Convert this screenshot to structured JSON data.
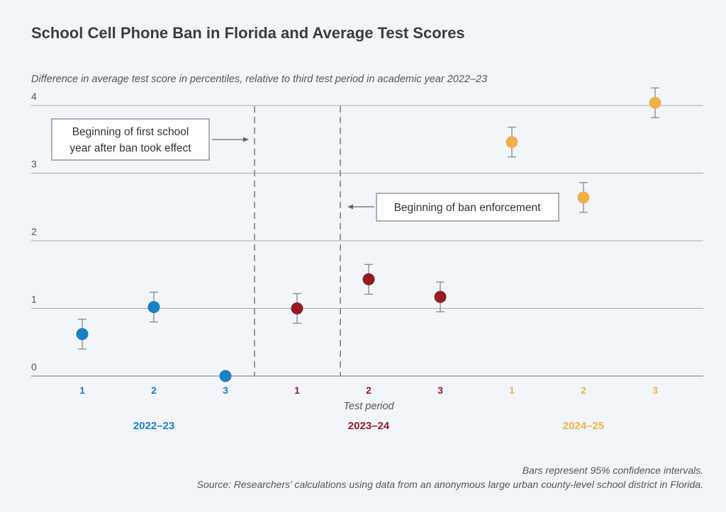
{
  "title": "School Cell Phone Ban in Florida and Average Test Scores",
  "subtitle": "Difference in average test score in percentiles, relative to third test period in academic year 2022–23",
  "notes": {
    "bars": "Bars represent 95% confidence intervals.",
    "source": "Source: Researchers’ calculations using data from an anonymous large urban county-level school district in Florida."
  },
  "colors": {
    "2022-23": "#1a7fc4",
    "2023-24": "#961c24",
    "2024-25": "#f0b04a"
  },
  "chart_data": {
    "type": "scatter",
    "xlabel": "Test period",
    "ylim": [
      0,
      4
    ],
    "yticks": [
      "0",
      "1",
      "2",
      "3",
      "4"
    ],
    "grid": true,
    "x_categories": [
      "1",
      "2",
      "3",
      "1",
      "2",
      "3",
      "1",
      "2",
      "3"
    ],
    "groups": [
      {
        "label": "2022–23",
        "color": "#1a7fc4",
        "points": [
          {
            "period": "1",
            "y": 0.62,
            "ci": [
              0.4,
              0.84
            ]
          },
          {
            "period": "2",
            "y": 1.02,
            "ci": [
              0.8,
              1.24
            ]
          },
          {
            "period": "3",
            "y": 0.0,
            "ci": null
          }
        ]
      },
      {
        "label": "2023–24",
        "color": "#961c24",
        "points": [
          {
            "period": "1",
            "y": 1.0,
            "ci": [
              0.78,
              1.22
            ]
          },
          {
            "period": "2",
            "y": 1.43,
            "ci": [
              1.21,
              1.65
            ]
          },
          {
            "period": "3",
            "y": 1.17,
            "ci": [
              0.95,
              1.39
            ]
          }
        ]
      },
      {
        "label": "2024–25",
        "color": "#f0b04a",
        "points": [
          {
            "period": "1",
            "y": 3.46,
            "ci": [
              3.24,
              3.68
            ]
          },
          {
            "period": "2",
            "y": 2.64,
            "ci": [
              2.42,
              2.86
            ]
          },
          {
            "period": "3",
            "y": 4.04,
            "ci": [
              3.82,
              4.26
            ]
          }
        ]
      }
    ],
    "annotations": [
      {
        "text_lines": [
          "Beginning of first school",
          "year after ban took effect"
        ]
      },
      {
        "text_lines": [
          "Beginning of ban enforcement"
        ]
      }
    ]
  }
}
